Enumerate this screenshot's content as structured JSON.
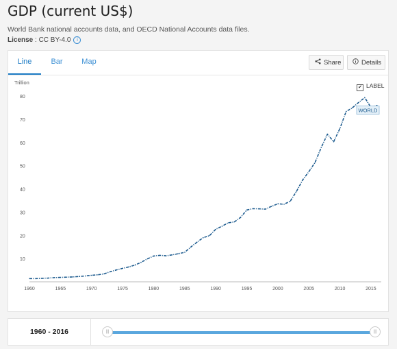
{
  "header": {
    "title": "GDP (current US$)",
    "subtitle": "World Bank national accounts data, and OECD National Accounts data files.",
    "license_label": "License",
    "license_value": " : CC BY-4.0"
  },
  "tabs": [
    "Line",
    "Bar",
    "Map"
  ],
  "active_tab": "Line",
  "toolbar": {
    "share_label": "Share",
    "details_label": "Details"
  },
  "label_toggle": {
    "label": "LABEL",
    "checked": true
  },
  "footer": {
    "range_label": "1960 - 2016",
    "slider_start": 1960,
    "slider_end": 2016
  },
  "colors": {
    "accent": "#1a7ac4",
    "line": "#1b5a8e",
    "slider": "#5aa7de"
  },
  "chart_data": {
    "type": "line",
    "title": "",
    "ylabel": "Trillion",
    "xlabel": "",
    "xlim": [
      1960,
      2016
    ],
    "ylim": [
      0,
      80
    ],
    "x_ticks": [
      1960,
      1965,
      1970,
      1975,
      1980,
      1985,
      1990,
      1995,
      2000,
      2005,
      2010,
      2015
    ],
    "y_ticks": [
      10,
      20,
      30,
      40,
      50,
      60,
      70,
      80
    ],
    "grid": false,
    "annotation": "WORLD",
    "series": [
      {
        "name": "WORLD",
        "x": [
          1960,
          1961,
          1962,
          1963,
          1964,
          1965,
          1966,
          1967,
          1968,
          1969,
          1970,
          1971,
          1972,
          1973,
          1974,
          1975,
          1976,
          1977,
          1978,
          1979,
          1980,
          1981,
          1982,
          1983,
          1984,
          1985,
          1986,
          1987,
          1988,
          1989,
          1990,
          1991,
          1992,
          1993,
          1994,
          1995,
          1996,
          1997,
          1998,
          1999,
          2000,
          2001,
          2002,
          2003,
          2004,
          2005,
          2006,
          2007,
          2008,
          2009,
          2010,
          2011,
          2012,
          2013,
          2014,
          2015,
          2016
        ],
        "y": [
          1.4,
          1.4,
          1.5,
          1.6,
          1.8,
          1.9,
          2.0,
          2.1,
          2.3,
          2.5,
          2.8,
          3.0,
          3.4,
          4.3,
          5.1,
          5.8,
          6.4,
          7.2,
          8.4,
          9.9,
          11.1,
          11.4,
          11.2,
          11.6,
          12.1,
          12.7,
          15.0,
          17.1,
          19.0,
          19.9,
          22.6,
          23.9,
          25.4,
          25.8,
          27.7,
          30.9,
          31.5,
          31.4,
          31.3,
          32.5,
          33.6,
          33.4,
          34.7,
          38.9,
          43.8,
          47.4,
          51.4,
          57.9,
          63.6,
          60.3,
          66.0,
          73.3,
          74.9,
          77.2,
          79.3,
          75.1,
          76.0
        ]
      }
    ]
  }
}
